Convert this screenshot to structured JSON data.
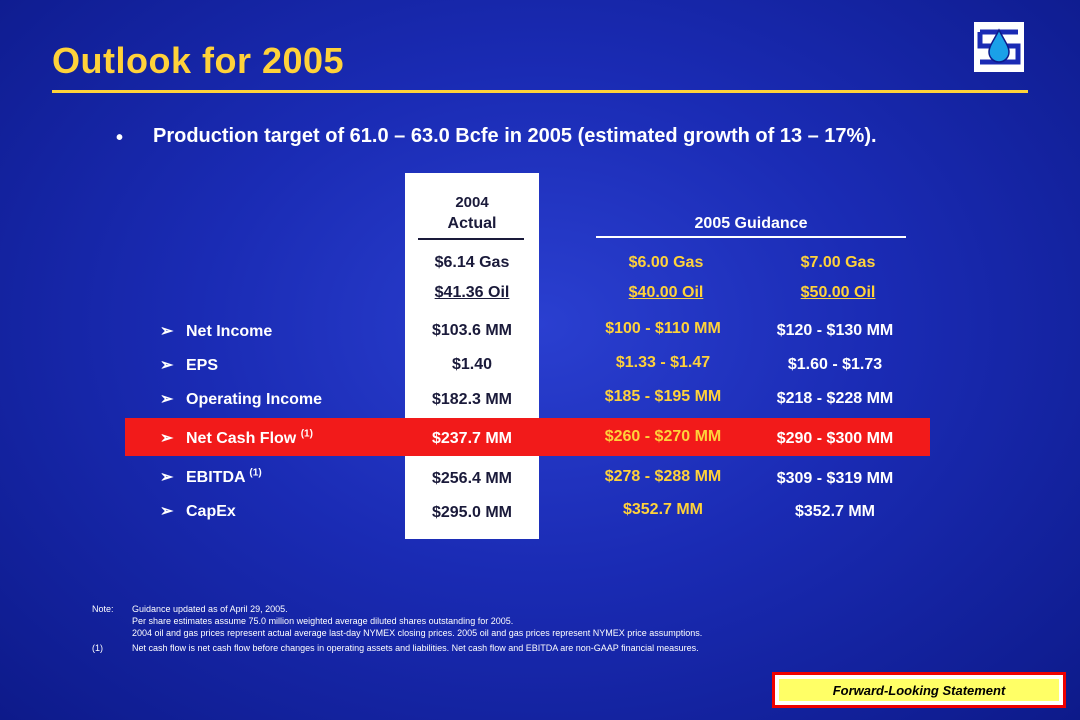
{
  "title": "Outlook for 2005",
  "bullet": "Production target of 61.0 – 63.0 Bcfe in 2005 (estimated growth of 13 – 17%).",
  "col_2004": {
    "header_line1": "2004",
    "header_line2": "Actual",
    "gas": "$6.14 Gas",
    "oil": "$41.36 Oil"
  },
  "guidance_header": "2005 Guidance",
  "scen_a": {
    "gas": "$6.00 Gas",
    "oil": "$40.00 Oil"
  },
  "scen_b": {
    "gas": "$7.00 Gas",
    "oil": "$50.00 Oil"
  },
  "arrow": "➢",
  "rows": [
    {
      "label": "Net Income",
      "sup": "",
      "actual": "$103.6 MM",
      "a": "$100 - $110 MM",
      "b": "$120 - $130 MM"
    },
    {
      "label": "EPS",
      "sup": "",
      "actual": "$1.40",
      "a": "$1.33 - $1.47",
      "b": "$1.60 - $1.73"
    },
    {
      "label": "Operating Income",
      "sup": "",
      "actual": "$182.3 MM",
      "a": "$185 - $195 MM",
      "b": "$218 - $228 MM"
    },
    {
      "label": "Net Cash Flow",
      "sup": "(1)",
      "actual": "$237.7 MM",
      "a": "$260 - $270 MM",
      "b": "$290 - $300 MM"
    },
    {
      "label": "EBITDA",
      "sup": "(1)",
      "actual": "$256.4 MM",
      "a": "$278 - $288 MM",
      "b": "$309 - $319 MM"
    },
    {
      "label": "CapEx",
      "sup": "",
      "actual": "$295.0 MM",
      "a": "$352.7 MM",
      "b": "$352.7 MM"
    }
  ],
  "notes": {
    "note_key": "Note:",
    "note_lines": [
      "Guidance updated as of April 29, 2005.",
      "Per share estimates assume 75.0 million weighted average diluted shares outstanding for 2005.",
      "2004 oil and gas prices represent actual average last-day NYMEX closing prices.  2005 oil and gas prices represent NYMEX price assumptions."
    ],
    "fn_key": "(1)",
    "fn_text": "Net cash flow is net cash flow before changes in operating assets and liabilities.  Net cash flow and EBITDA are non-GAAP financial measures."
  },
  "forward_looking": "Forward-Looking Statement"
}
